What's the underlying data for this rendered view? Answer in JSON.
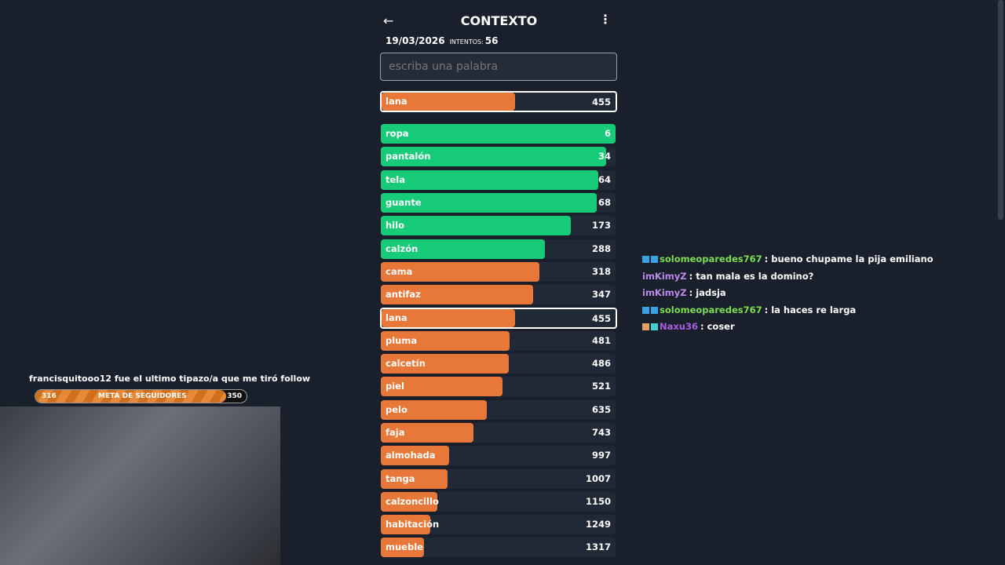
{
  "header": {
    "title": "CONTEXTO",
    "back_icon": "arrow-left-icon",
    "menu_icon": "kebab-menu-icon"
  },
  "meta": {
    "date": "19/03/2026",
    "attempts_label": "INTENTOS:",
    "attempts": "56"
  },
  "input": {
    "placeholder": "escriba una palabra",
    "value": ""
  },
  "colors": {
    "green": "#18cb78",
    "orange": "#e8783a",
    "background": "#1a202b",
    "row": "#222936"
  },
  "last_guess": {
    "word": "lana",
    "rank": "455",
    "fill_percent": 57
  },
  "guesses": [
    {
      "word": "ropa",
      "rank": "6",
      "fill_percent": 100,
      "color": "green"
    },
    {
      "word": "pantalón",
      "rank": "34",
      "fill_percent": 96,
      "color": "green"
    },
    {
      "word": "tela",
      "rank": "64",
      "fill_percent": 92.5,
      "color": "green"
    },
    {
      "word": "guante",
      "rank": "68",
      "fill_percent": 92,
      "color": "green"
    },
    {
      "word": "hilo",
      "rank": "173",
      "fill_percent": 81,
      "color": "green"
    },
    {
      "word": "calzón",
      "rank": "288",
      "fill_percent": 70,
      "color": "green"
    },
    {
      "word": "cama",
      "rank": "318",
      "fill_percent": 67.5,
      "color": "orange"
    },
    {
      "word": "antifaz",
      "rank": "347",
      "fill_percent": 65,
      "color": "orange"
    },
    {
      "word": "lana",
      "rank": "455",
      "fill_percent": 57,
      "color": "orange",
      "current": true
    },
    {
      "word": "pluma",
      "rank": "481",
      "fill_percent": 55,
      "color": "orange"
    },
    {
      "word": "calcetín",
      "rank": "486",
      "fill_percent": 54.5,
      "color": "orange"
    },
    {
      "word": "piel",
      "rank": "521",
      "fill_percent": 52,
      "color": "orange"
    },
    {
      "word": "pelo",
      "rank": "635",
      "fill_percent": 45,
      "color": "orange"
    },
    {
      "word": "faja",
      "rank": "743",
      "fill_percent": 39.5,
      "color": "orange"
    },
    {
      "word": "almohada",
      "rank": "997",
      "fill_percent": 29,
      "color": "orange"
    },
    {
      "word": "tanga",
      "rank": "1007",
      "fill_percent": 28.5,
      "color": "orange"
    },
    {
      "word": "calzoncillo",
      "rank": "1150",
      "fill_percent": 24,
      "color": "orange"
    },
    {
      "word": "habitación",
      "rank": "1249",
      "fill_percent": 21,
      "color": "orange"
    },
    {
      "word": "mueble",
      "rank": "1317",
      "fill_percent": 18.5,
      "color": "orange"
    }
  ],
  "chat": [
    {
      "user": "solomeoparedes767",
      "color": "#7cdc52",
      "badges": [
        "#3aa0e0",
        "#3aa0e0"
      ],
      "text": ": bueno chupame la pija emiliano"
    },
    {
      "user": "imKimyZ",
      "color": "#b98ae8",
      "badges": [],
      "text": ": tan mala es la domino?"
    },
    {
      "user": "imKimyZ",
      "color": "#b98ae8",
      "badges": [],
      "text": ": jadsja"
    },
    {
      "user": "solomeoparedes767",
      "color": "#7cdc52",
      "badges": [
        "#3aa0e0",
        "#3aa0e0"
      ],
      "text": ": la haces re larga"
    },
    {
      "user": "Naxu36",
      "color": "#a85ee0",
      "badges": [
        "#e0a060",
        "#40d0d0"
      ],
      "text": ": coser"
    }
  ],
  "overlay": {
    "follow_text": "francisquitooo12 fue el ultimo tipazo/a que me tiró follow",
    "goal_label": "META DE SEGUIDORES",
    "goal_current": "316",
    "goal_target": "350",
    "goal_percent": 90.3
  }
}
